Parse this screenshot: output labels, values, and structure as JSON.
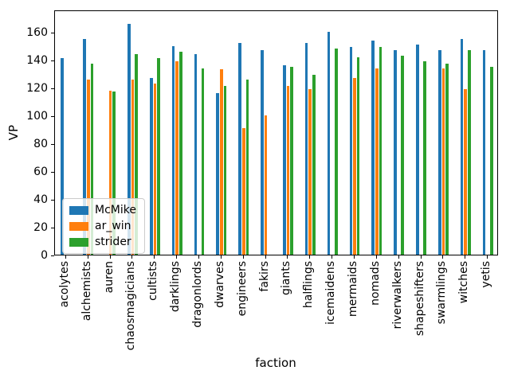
{
  "chart_data": {
    "type": "bar",
    "title": "",
    "xlabel": "faction",
    "ylabel": "VP",
    "categories": [
      "acolytes",
      "alchemists",
      "auren",
      "chaosmagicians",
      "cultists",
      "darklings",
      "dragonlords",
      "dwarves",
      "engineers",
      "fakirs",
      "giants",
      "halflings",
      "icemaidens",
      "mermaids",
      "nomads",
      "riverwalkers",
      "shapeshifters",
      "swarmlings",
      "witches",
      "yetis"
    ],
    "series": [
      {
        "name": "McMike",
        "color": "#1f77b4",
        "values": [
          141,
          155,
          0,
          166,
          127,
          150,
          144,
          116,
          152,
          147,
          136,
          152,
          160,
          149,
          154,
          147,
          151,
          147,
          155,
          147
        ]
      },
      {
        "name": "ar_win",
        "color": "#ff7f0e",
        "values": [
          0,
          126,
          118,
          126,
          123,
          139,
          0,
          133,
          91,
          100,
          121,
          119,
          0,
          127,
          134,
          0,
          0,
          134,
          119,
          0
        ]
      },
      {
        "name": "strider",
        "color": "#2ca02c",
        "values": [
          0,
          137,
          117,
          144,
          141,
          146,
          134,
          121,
          126,
          0,
          135,
          129,
          148,
          142,
          149,
          143,
          139,
          137,
          147,
          135
        ]
      }
    ],
    "yticks": [
      0,
      20,
      40,
      60,
      80,
      100,
      120,
      140,
      160
    ],
    "ylim": [
      0,
      176
    ],
    "grid": false,
    "legend_position": "lower left",
    "bar_group_width_fraction": 0.5
  }
}
